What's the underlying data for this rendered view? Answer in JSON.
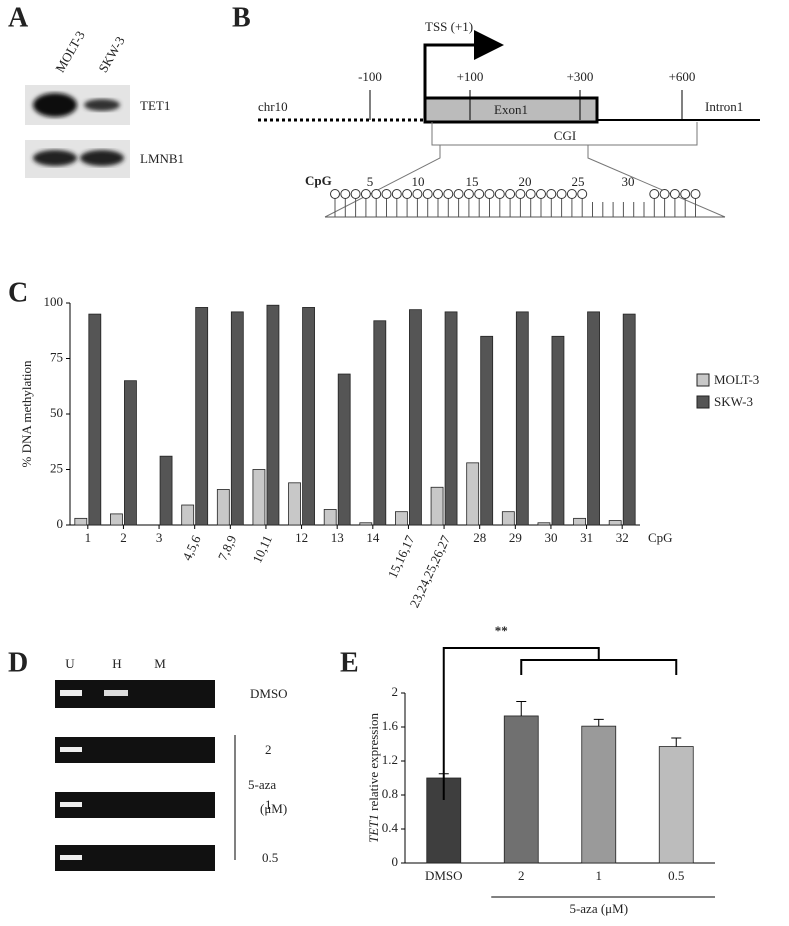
{
  "panels": {
    "a": "A",
    "b": "B",
    "c": "C",
    "d": "D",
    "e": "E"
  },
  "blot": {
    "lanes": [
      "MOLT-3",
      "SKW-3"
    ],
    "rows": [
      "TET1",
      "LMNB1"
    ]
  },
  "diagram": {
    "tss": "TSS (+1)",
    "positions": [
      "-100",
      "+100",
      "+300",
      "+600"
    ],
    "chr": "chr10",
    "exon": "Exon1",
    "intron": "Intron1",
    "cgi": "CGI",
    "cpg": "CpG",
    "cpg_numbers": [
      "5",
      "10",
      "15",
      "20",
      "25",
      "30"
    ]
  },
  "gel": {
    "lanes": [
      "U",
      "H",
      "M"
    ],
    "rows": [
      "DMSO",
      "2",
      "1",
      "0.5"
    ],
    "treatment": "5-aza",
    "unit": "(μM)"
  },
  "chart_data": [
    {
      "type": "bar",
      "ylabel": "% DNA methylation",
      "xlabel": "CpG",
      "categories": [
        "1",
        "2",
        "3",
        "4,5,6",
        "7,8,9",
        "10,11",
        "12",
        "13",
        "14",
        "15,16,17",
        "23,24,25,26,27",
        "28",
        "29",
        "30",
        "31",
        "32"
      ],
      "series": [
        {
          "name": "MOLT-3",
          "color": "#c8c8c8",
          "values": [
            3,
            5,
            0,
            9,
            16,
            25,
            19,
            7,
            1,
            6,
            17,
            28,
            6,
            1,
            3,
            2
          ]
        },
        {
          "name": "SKW-3",
          "color": "#555555",
          "values": [
            95,
            65,
            31,
            98,
            96,
            99,
            98,
            68,
            92,
            97,
            96,
            85,
            96,
            85,
            96,
            95
          ]
        }
      ],
      "ylim": [
        0,
        100
      ],
      "yticks": [
        0,
        25,
        50,
        75,
        100
      ],
      "legend": "right"
    },
    {
      "type": "bar",
      "ylabel_italic": "TET1",
      "ylabel": "relative expression",
      "categories": [
        "DMSO",
        "2",
        "1",
        "0.5"
      ],
      "values": [
        1.0,
        1.73,
        1.61,
        1.37
      ],
      "errors": [
        0.05,
        0.17,
        0.08,
        0.1
      ],
      "colors": [
        "#3e3e3e",
        "#707070",
        "#9a9a9a",
        "#bcbcbc"
      ],
      "ylim": [
        0,
        2
      ],
      "yticks": [
        0,
        0.4,
        0.8,
        1.2,
        1.6,
        2
      ],
      "significance": "**",
      "group_label": "5-aza (μM)"
    }
  ]
}
